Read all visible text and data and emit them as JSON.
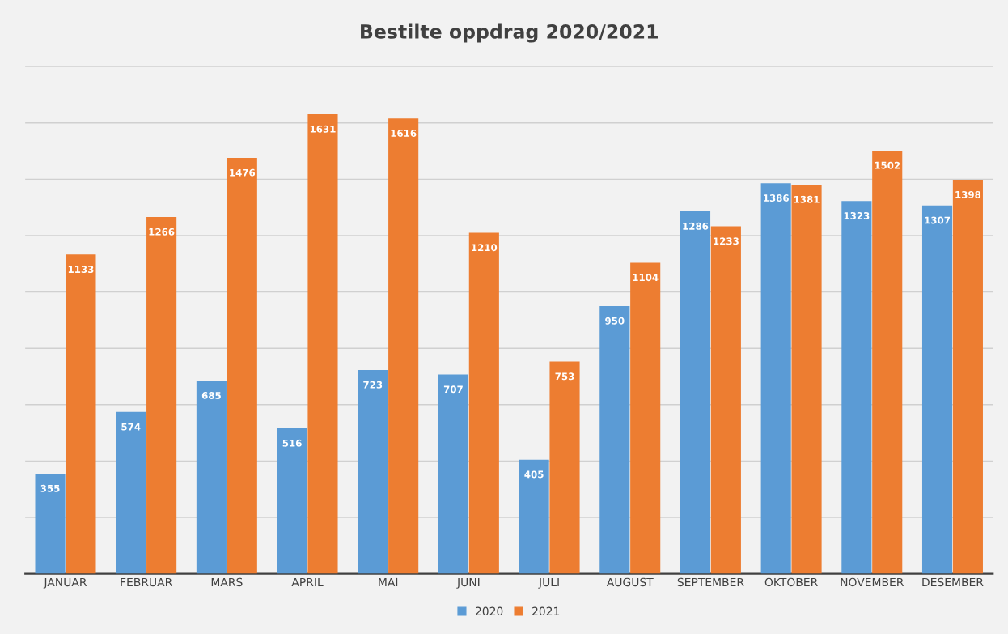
{
  "chart_data": {
    "type": "bar",
    "title": "Bestilte oppdrag 2020/2021",
    "categories": [
      "JANUAR",
      "FEBRUAR",
      "MARS",
      "APRIL",
      "MAI",
      "JUNI",
      "JULI",
      "AUGUST",
      "SEPTEMBER",
      "OKTOBER",
      "NOVEMBER",
      "DESEMBER"
    ],
    "series": [
      {
        "name": "2020",
        "color": "#5b9bd5",
        "values": [
          355,
          574,
          685,
          516,
          723,
          707,
          405,
          950,
          1286,
          1386,
          1323,
          1307
        ]
      },
      {
        "name": "2021",
        "color": "#ed7d31",
        "values": [
          1133,
          1266,
          1476,
          1631,
          1616,
          1210,
          753,
          1104,
          1233,
          1381,
          1502,
          1398
        ]
      }
    ],
    "ylim": [
      0,
      1800
    ],
    "yticks": [
      {
        "value": 0,
        "label": null
      },
      {
        "value": 200,
        "label": null
      },
      {
        "value": 400,
        "label": null
      },
      {
        "value": 600,
        "label": null
      },
      {
        "value": 800,
        "label": null
      },
      {
        "value": 1000,
        "label": null
      },
      {
        "value": 1200,
        "label": null
      },
      {
        "value": 1400,
        "label": null
      },
      {
        "value": 1600,
        "label": null
      },
      {
        "value": 1800,
        "label": null
      }
    ],
    "tick_labels": "x",
    "grid": "y",
    "legend": "bottom",
    "data_labels": true
  }
}
